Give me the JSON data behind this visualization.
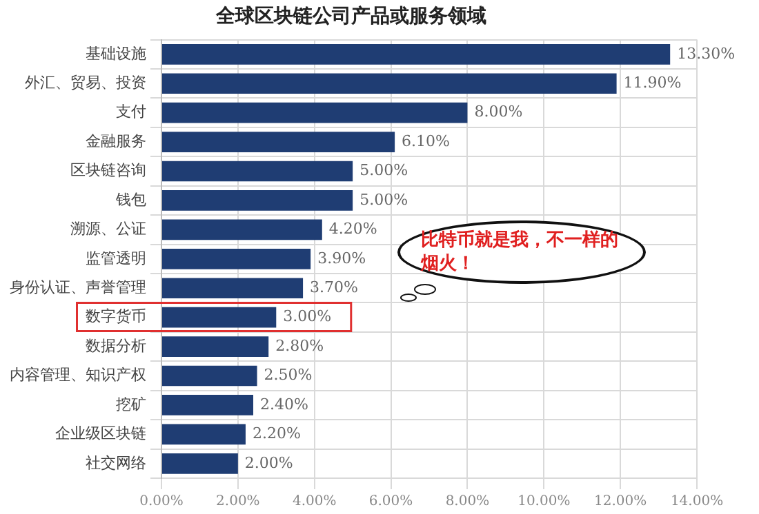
{
  "chart_data": {
    "type": "bar",
    "orientation": "horizontal",
    "title": "全球区块链公司产品或服务领域",
    "categories": [
      "基础设施",
      "外汇、贸易、投资",
      "支付",
      "金融服务",
      "区块链咨询",
      "钱包",
      "溯源、公证",
      "监管透明",
      "身份认证、声誉管理",
      "数字货币",
      "数据分析",
      "内容管理、知识产权",
      "挖矿",
      "企业级区块链",
      "社交网络"
    ],
    "values": [
      13.3,
      11.9,
      8.0,
      6.1,
      5.0,
      5.0,
      4.2,
      3.9,
      3.7,
      3.0,
      2.8,
      2.5,
      2.4,
      2.2,
      2.0
    ],
    "value_labels": [
      "13.30%",
      "11.90%",
      "8.00%",
      "6.10%",
      "5.00%",
      "5.00%",
      "4.20%",
      "3.90%",
      "3.70%",
      "3.00%",
      "2.80%",
      "2.50%",
      "2.40%",
      "2.20%",
      "2.00%"
    ],
    "color": "#1f3d73",
    "xlim": [
      0,
      14
    ],
    "xticks": [
      {
        "value": 0,
        "label": "0.00%"
      },
      {
        "value": 2,
        "label": "2.00%"
      },
      {
        "value": 4,
        "label": "4.00%"
      },
      {
        "value": 6,
        "label": "6.00%"
      },
      {
        "value": 8,
        "label": "8.00%"
      },
      {
        "value": 10,
        "label": "10.00%"
      },
      {
        "value": 12,
        "label": "12.00%"
      },
      {
        "value": 14,
        "label": "14.00%"
      }
    ],
    "grid": true,
    "legend": false,
    "annotations": [
      "比特币就是我，不一样的烟火！"
    ]
  }
}
